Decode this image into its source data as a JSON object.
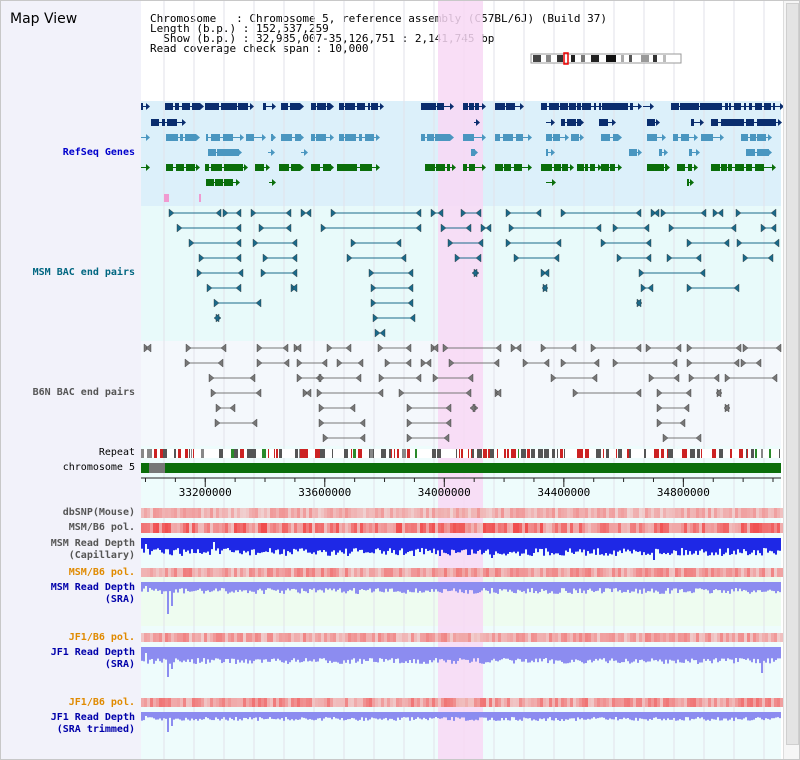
{
  "title": "Map View",
  "info": {
    "chromosome": "Chromosome   : Chromosome 5, reference assembly (C57BL/6J) (Build 37)",
    "length": "Length (b.p.) : 152,537,259",
    "show": "  Show (b.p.) : 32,985,007-35,126,751 : 2,141,745 bp",
    "coverage": "Read coverage check span : 10,000"
  },
  "tracks": {
    "refseq": "RefSeq Genes",
    "msm_bac": "MSM BAC end pairs",
    "b6n_bac": "B6N BAC end pairs",
    "repeat": "Repeat",
    "chromosome": "chromosome 5",
    "dbsnp": "dbSNP(Mouse)",
    "msm_b6_pol": "MSM/B6 pol.",
    "msm_depth_cap_1": "MSM Read Depth",
    "msm_depth_cap_2": "(Capillary)",
    "msm_b6_pol_sra": "MSM/B6 pol.",
    "msm_depth_sra_1": "MSM Read Depth",
    "msm_depth_sra_2": "(SRA)",
    "jf1_b6_pol": "JF1/B6 pol.",
    "jf1_depth_sra_1": "JF1 Read Depth",
    "jf1_depth_sra_2": "(SRA)",
    "jf1_b6_pol_2": "JF1/B6 pol.",
    "jf1_depth_trim_1": "JF1 Read Depth",
    "jf1_depth_trim_2": "(SRA trimmed)"
  },
  "axis": {
    "view_start": 32985007,
    "view_end": 35126751,
    "ticks": [
      "33200000",
      "33600000",
      "34000000",
      "34400000",
      "34800000"
    ]
  },
  "colors": {
    "refseq_bg": "#dcf0fa",
    "bac_bg": "#e8fafa",
    "gene_navy": "#0a2d6e",
    "gene_teal": "#4a96c0",
    "gene_green": "#0a6e0a",
    "highlight": "#f8d8f4",
    "depth_blue": "#1e28e6",
    "depth_light": "#8c8cf0",
    "pol_red": "#e84040",
    "chromosome_green": "#0a6e0a"
  }
}
